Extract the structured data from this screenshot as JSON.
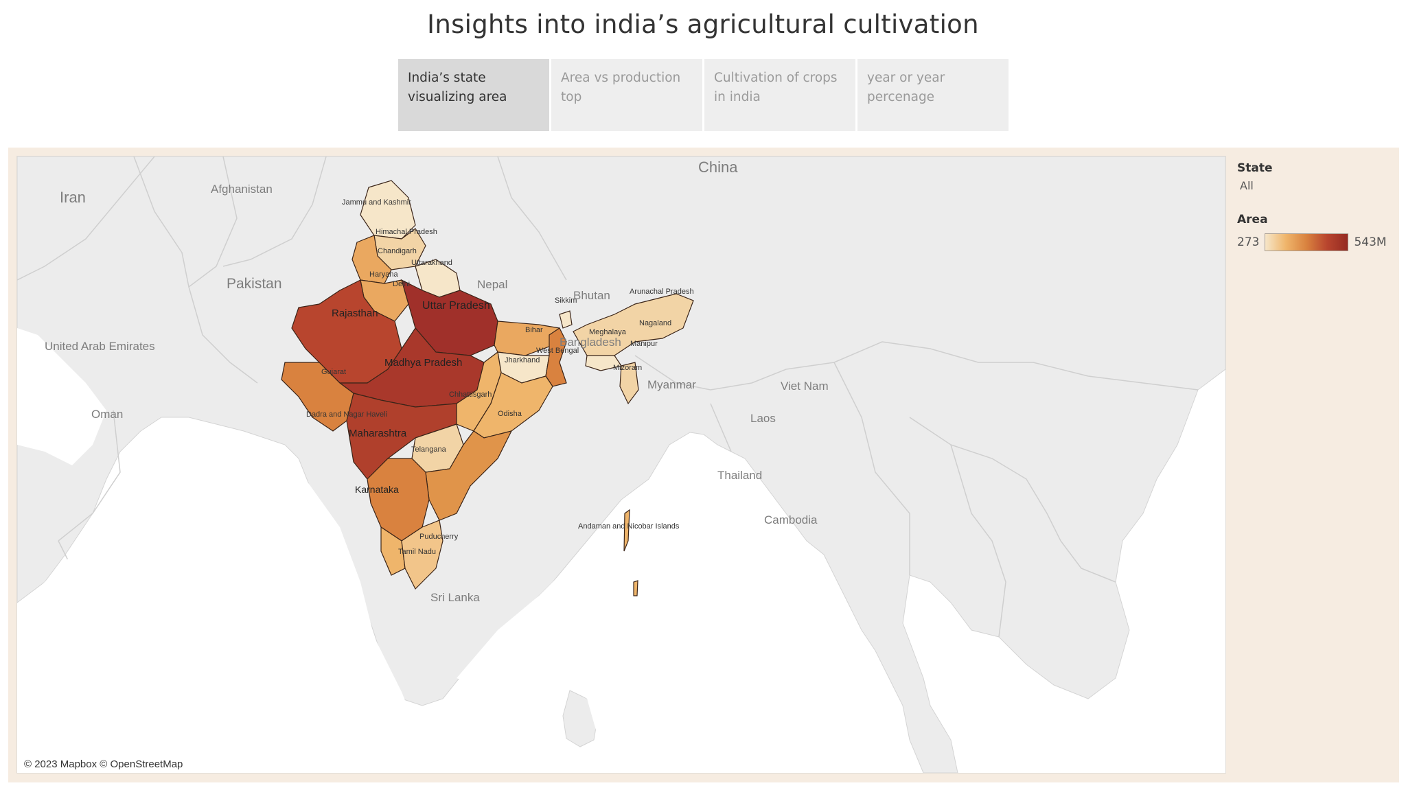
{
  "title": "Insights into india’s agricultural cultivation",
  "tabs": [
    {
      "label": "India’s state visualizing area",
      "active": true
    },
    {
      "label": "Area vs production top",
      "active": false
    },
    {
      "label": "Cultivation of crops in india",
      "active": false
    },
    {
      "label": "year or year percenage",
      "active": false
    }
  ],
  "map": {
    "copyright": "© 2023 Mapbox © OpenStreetMap",
    "countries": [
      "Iran",
      "Afghanistan",
      "Pakistan",
      "China",
      "Nepal",
      "Bhutan",
      "Bangladesh",
      "Myanmar",
      "Thailand",
      "Laos",
      "Viet Nam",
      "Cambodia",
      "United Arab Emirates",
      "Oman",
      "Sri Lanka"
    ],
    "states": [
      "Jammu and Kashmir",
      "Himachal Pradesh",
      "Chandigarh",
      "Uttarakhand",
      "Haryana",
      "Delhi",
      "Rajasthan",
      "Uttar Pradesh",
      "Bihar",
      "Sikkim",
      "Arunachal Pradesh",
      "Nagaland",
      "Meghalaya",
      "Manipur",
      "Mizoram",
      "West Bengal",
      "Jharkhand",
      "Gujarat",
      "Madhya Pradesh",
      "Chhattisgarh",
      "Odisha",
      "Dadra and Nagar Haveli",
      "Maharashtra",
      "Telangana",
      "Karnataka",
      "Puducherry",
      "Tamil Nadu",
      "Andaman and Nicobar Islands"
    ]
  },
  "legend": {
    "state_title": "State",
    "state_value": "All",
    "area_title": "Area",
    "area_min": "273",
    "area_max": "543M"
  },
  "colors": {
    "light": "#f6e6c9",
    "mid": "#efb56b",
    "orange": "#d9823f",
    "red": "#b8452e",
    "dark": "#952a22",
    "land": "#ececec",
    "water": "#ffffff"
  }
}
